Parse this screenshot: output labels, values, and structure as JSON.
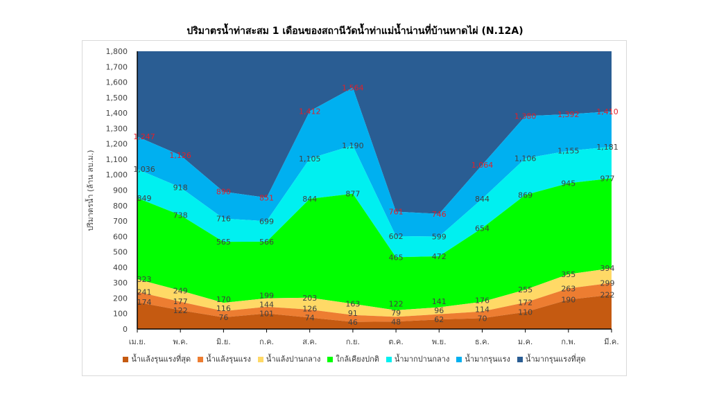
{
  "chart_data": {
    "type": "area",
    "stacked": true,
    "title": "ปริมาตรน้ำท่าสะสม 1 เดือนของสถานีวัดน้ำท่าแม่น้ำน่านที่บ้านหาดไผ่ (N.12A)",
    "xlabel": "",
    "ylabel": "ปริมาตรน้ำ (ล้าน ลบ.ม.)",
    "ylim": [
      0,
      1800
    ],
    "yticks": [
      "0",
      "100",
      "200",
      "300",
      "400",
      "500",
      "600",
      "700",
      "800",
      "900",
      "1,000",
      "1,100",
      "1,200",
      "1,300",
      "1,400",
      "1,500",
      "1,600",
      "1,700",
      "1,800"
    ],
    "categories": [
      "เม.ย.",
      "พ.ค.",
      "มิ.ย.",
      "ก.ค.",
      "ส.ค.",
      "ก.ย.",
      "ต.ค.",
      "พ.ย.",
      "ธ.ค.",
      "ม.ค.",
      "ก.พ.",
      "มี.ค."
    ],
    "values_are_cumulative_upper_bounds": true,
    "legend_position": "bottom",
    "grid": false,
    "series": [
      {
        "name": "น้ำแล้งรุนแรงที่สุด",
        "color": "#C55A11",
        "label_color": "#404040",
        "values": [
          174,
          122,
          76,
          101,
          74,
          46,
          48,
          62,
          70,
          110,
          190,
          222
        ]
      },
      {
        "name": "น้ำแล้งรุนแรง",
        "color": "#ED7D31",
        "label_color": "#404040",
        "values": [
          241,
          177,
          116,
          144,
          126,
          91,
          79,
          96,
          114,
          172,
          263,
          299
        ]
      },
      {
        "name": "น้ำแล้งปานกลาง",
        "color": "#FFD966",
        "label_color": "#404040",
        "values": [
          323,
          249,
          170,
          199,
          203,
          163,
          122,
          141,
          176,
          255,
          355,
          394
        ]
      },
      {
        "name": "ใกล้เคียงปกติ",
        "color": "#00FF00",
        "label_color": "#404040",
        "values": [
          849,
          738,
          565,
          566,
          844,
          877,
          465,
          472,
          654,
          869,
          945,
          977
        ]
      },
      {
        "name": "น้ำมากปานกลาง",
        "color": "#00F0F0",
        "label_color": "#404040",
        "values": [
          1036,
          918,
          716,
          699,
          1105,
          1190,
          602,
          599,
          844,
          1106,
          1155,
          1181
        ]
      },
      {
        "name": "น้ำมากรุนแรง",
        "color": "#00B0F0",
        "label_color": "#E0202A",
        "values": [
          1247,
          1126,
          890,
          851,
          1412,
          1564,
          761,
          746,
          1064,
          1380,
          1392,
          1410
        ]
      },
      {
        "name": "น้ำมากรุนแรงที่สุด",
        "color": "#2A5D93",
        "values": [
          1800,
          1800,
          1800,
          1800,
          1800,
          1800,
          1800,
          1800,
          1800,
          1800,
          1800,
          1800
        ],
        "fills_to_axis_max": true
      }
    ]
  }
}
